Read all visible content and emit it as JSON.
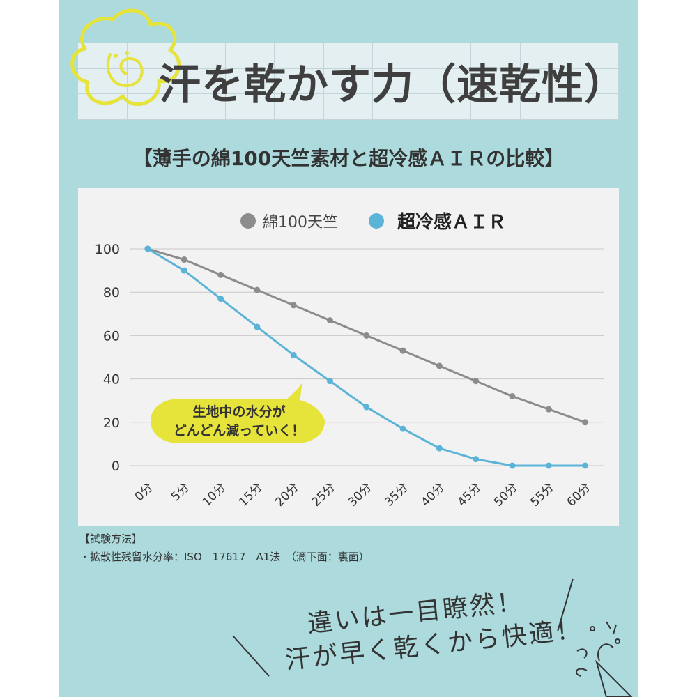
{
  "header": {
    "title": "汗を乾かす力（速乾性）"
  },
  "chart_data": {
    "type": "line",
    "title": "【薄手の綿100天竺素材と超冷感ＡＩＲの比較】",
    "categories": [
      "0分",
      "5分",
      "10分",
      "15分",
      "20分",
      "25分",
      "30分",
      "35分",
      "40分",
      "45分",
      "50分",
      "55分",
      "60分"
    ],
    "ylim": [
      0,
      100
    ],
    "yticks": [
      0,
      20,
      40,
      60,
      80,
      100
    ],
    "grid": true,
    "legend_position": "top-center",
    "series": [
      {
        "name": "綿100天竺",
        "color": "#8c8c8c",
        "values": [
          100,
          95,
          88,
          81,
          74,
          67,
          60,
          53,
          46,
          39,
          32,
          26,
          20
        ]
      },
      {
        "name": "超冷感ＡＩＲ",
        "color": "#5bb4d8",
        "values": [
          100,
          90,
          77,
          64,
          51,
          39,
          27,
          17,
          8,
          3,
          0,
          0,
          0
        ]
      }
    ],
    "annotation": {
      "line1": "生地中の水分が",
      "line2": "どんどん減っていく！",
      "color": "#e6e33b"
    }
  },
  "method": {
    "heading": "【試験方法】",
    "detail": "・拡散性残留水分率：ISO　17617　A1法　（滴下面：裏面）"
  },
  "handwriting": {
    "line1": "違いは一目瞭然！",
    "line2": "汗が早く乾くから快適！"
  },
  "colors": {
    "background": "#acdadd",
    "accent": "#e6e33b"
  }
}
